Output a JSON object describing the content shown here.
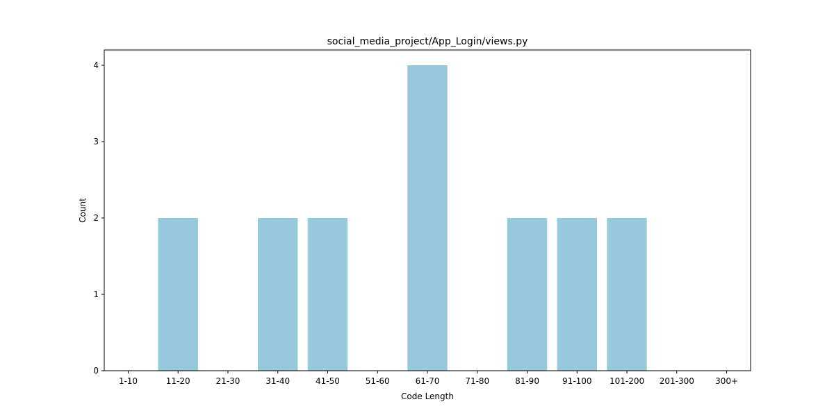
{
  "chart_data": {
    "type": "bar",
    "title": "social_media_project/App_Login/views.py",
    "xlabel": "Code Length",
    "ylabel": "Count",
    "categories": [
      "1-10",
      "11-20",
      "21-30",
      "31-40",
      "41-50",
      "51-60",
      "61-70",
      "71-80",
      "81-90",
      "91-100",
      "101-200",
      "201-300",
      "300+"
    ],
    "values": [
      0,
      2,
      0,
      2,
      2,
      0,
      4,
      0,
      2,
      2,
      2,
      0,
      0
    ],
    "ylim": [
      0,
      4.2
    ],
    "yticks": [
      0,
      1,
      2,
      3,
      4
    ],
    "bar_color": "#96c9dc",
    "grid": false,
    "legend": "none"
  }
}
